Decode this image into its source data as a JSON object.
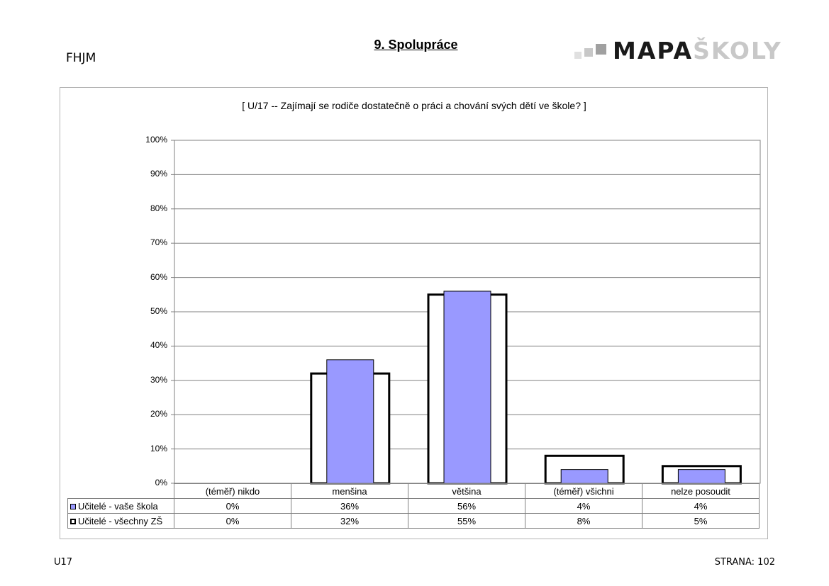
{
  "page": {
    "code": "FHJM",
    "section_title": "9. Spolupráce",
    "logo": {
      "part1": "MAPA",
      "part2": "ŠKOLY"
    },
    "footer_left": "U17",
    "footer_right": "STRANA: 102"
  },
  "chart_data": {
    "type": "bar",
    "title": "[ U/17 -- Zajímají se rodiče dostatečně o práci a chování svých dětí ve škole? ]",
    "categories": [
      "(téměř) nikdo",
      "menšina",
      "většina",
      "(téměř) všichni",
      "nelze posoudit"
    ],
    "ylim": [
      0,
      100
    ],
    "yticks": [
      "0%",
      "10%",
      "20%",
      "30%",
      "40%",
      "50%",
      "60%",
      "70%",
      "80%",
      "90%",
      "100%"
    ],
    "grid": true,
    "legend_position": "data-table",
    "series": [
      {
        "name": "Učitelé - vaše škola",
        "values": [
          0,
          36,
          56,
          4,
          4
        ],
        "labels": [
          "0%",
          "36%",
          "56%",
          "4%",
          "4%"
        ],
        "color": "#9999ff"
      },
      {
        "name": "Učitelé - všechny ZŠ",
        "values": [
          0,
          32,
          55,
          8,
          5
        ],
        "labels": [
          "0%",
          "32%",
          "55%",
          "8%",
          "5%"
        ],
        "color": "#ffffff"
      }
    ]
  }
}
